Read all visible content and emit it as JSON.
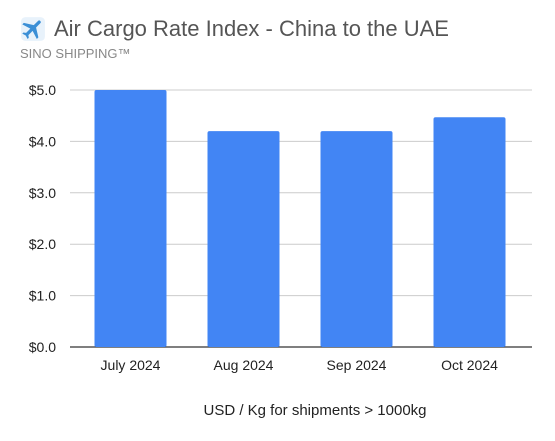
{
  "header": {
    "title": "Air Cargo Rate Index - China to the UAE",
    "subtitle": "SINO SHIPPING™",
    "icon": "airplane-icon"
  },
  "chart_data": {
    "type": "bar",
    "title": "Air Cargo Rate Index - China to the UAE",
    "subtitle": "SINO SHIPPING™",
    "categories": [
      "July 2024",
      "Aug 2024",
      "Sep 2024",
      "Oct 2024"
    ],
    "values": [
      5.0,
      4.2,
      4.2,
      4.47
    ],
    "xlabel": "USD / Kg for shipments > 1000kg",
    "ylabel": "",
    "ylim": [
      0,
      5
    ],
    "yticks": [
      0,
      1,
      2,
      3,
      4,
      5
    ],
    "ytick_labels": [
      "$0.0",
      "$1.0",
      "$2.0",
      "$3.0",
      "$4.0",
      "$5.0"
    ],
    "grid": true,
    "legend": "none",
    "bar_color": "#4285F4",
    "grid_color": "#cccccc"
  }
}
